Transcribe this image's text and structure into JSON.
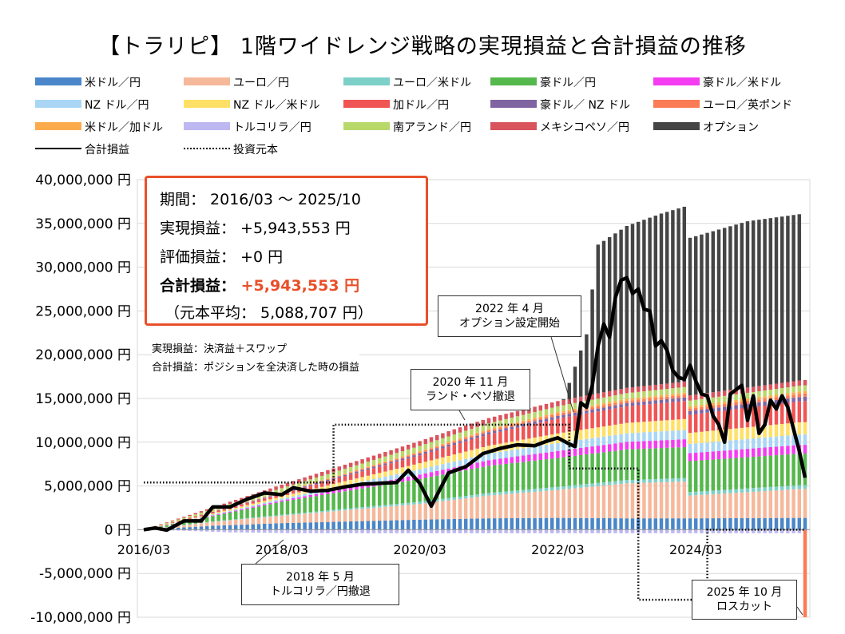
{
  "title": "【トラリピ】 1階ワイドレンジ戦略の実現損益と合計損益の推移",
  "legend": [
    {
      "label": "米ドル／円",
      "color": "#4a86c8",
      "kind": "bar"
    },
    {
      "label": "ユーロ／円",
      "color": "#f6b89b",
      "kind": "bar"
    },
    {
      "label": "ユーロ／米ドル",
      "color": "#7dd0c7",
      "kind": "bar"
    },
    {
      "label": "豪ドル／円",
      "color": "#55b84c",
      "kind": "bar"
    },
    {
      "label": "豪ドル／米ドル",
      "color": "#f43cf0",
      "kind": "bar"
    },
    {
      "label": "NZ ドル／円",
      "color": "#a9d6f5",
      "kind": "bar"
    },
    {
      "label": "NZ ドル／米ドル",
      "color": "#ffe066",
      "kind": "bar"
    },
    {
      "label": "加ドル／円",
      "color": "#f05454",
      "kind": "bar"
    },
    {
      "label": "豪ドル／ NZ ドル",
      "color": "#8064a2",
      "kind": "bar"
    },
    {
      "label": "ユーロ／英ポンド",
      "color": "#fb7b54",
      "kind": "bar"
    },
    {
      "label": "米ドル／加ドル",
      "color": "#fbab4c",
      "kind": "bar"
    },
    {
      "label": "トルコリラ／円",
      "color": "#bdb7f2",
      "kind": "bar"
    },
    {
      "label": "南アランド／円",
      "color": "#b9d86a",
      "kind": "bar"
    },
    {
      "label": "メキシコペソ／円",
      "color": "#d9545c",
      "kind": "bar"
    },
    {
      "label": "オプション",
      "color": "#454545",
      "kind": "bar"
    },
    {
      "label": "合計損益",
      "color": "#000000",
      "kind": "line"
    },
    {
      "label": "投資元本",
      "color": "#000000",
      "kind": "dotted"
    }
  ],
  "summary": {
    "period": "期間： 2016/03 ～ 2025/10",
    "realized": "実現損益： +5,943,553 円",
    "unrealized": "評価損益： +0 円",
    "total_label": "合計損益：",
    "total_value": "+5,943,553 円",
    "principal": "（元本平均： 5,088,707 円）"
  },
  "notes": {
    "line1": "実現損益：決済益＋スワップ",
    "line2": "合計損益：ポジションを全決済した時の損益"
  },
  "annotations": [
    {
      "text1": "2018 年 5 月",
      "text2": "トルコリラ／円撤退"
    },
    {
      "text1": "2020 年 11 月",
      "text2": "ランド・ペソ撤退"
    },
    {
      "text1": "2022 年 4 月",
      "text2": "オプション設定開始"
    },
    {
      "text1": "2025 年 10 月",
      "text2": "ロスカット"
    }
  ],
  "chart_data": {
    "type": "bar",
    "stacked": true,
    "x_start": "2016/03",
    "x_end": "2025/10",
    "x_tick_labels": [
      "2016/03",
      "2018/03",
      "2020/03",
      "2022/03",
      "2024/03"
    ],
    "y_tick_labels": [
      "40,000,000 円",
      "35,000,000 円",
      "30,000,000 円",
      "25,000,000 円",
      "20,000,000 円",
      "15,000,000 円",
      "10,000,000 円",
      "5,000,000 円",
      "0 円",
      "-5,000,000 円",
      "-10,000,000 円"
    ],
    "ylim": [
      -10000000,
      40000000
    ],
    "series_anchors_note": "値は年月ごとの概算（円）。アンカー間は線形補間。",
    "series": [
      {
        "name": "米ドル／円",
        "anchors": [
          [
            "2016/03",
            0
          ],
          [
            "2017/03",
            450000
          ],
          [
            "2018/03",
            750000
          ],
          [
            "2020/03",
            1150000
          ],
          [
            "2021/03",
            1300000
          ],
          [
            "2022/03",
            1350000
          ],
          [
            "2023/03",
            1300000
          ],
          [
            "2024/03",
            1300000
          ],
          [
            "2025/09",
            1350000
          ],
          [
            "2025/10",
            1350000
          ]
        ]
      },
      {
        "name": "ユーロ／円",
        "anchors": [
          [
            "2016/03",
            0
          ],
          [
            "2017/03",
            450000
          ],
          [
            "2018/03",
            850000
          ],
          [
            "2020/03",
            1800000
          ],
          [
            "2021/03",
            2600000
          ],
          [
            "2022/03",
            3200000
          ],
          [
            "2023/03",
            4000000
          ],
          [
            "2024/01",
            4200000
          ],
          [
            "2024/02",
            2600000
          ],
          [
            "2025/09",
            3300000
          ],
          [
            "2025/10",
            3300000
          ]
        ]
      },
      {
        "name": "ユーロ／米ドル",
        "anchors": [
          [
            "2016/03",
            0
          ],
          [
            "2018/03",
            100000
          ],
          [
            "2020/03",
            250000
          ],
          [
            "2022/03",
            350000
          ],
          [
            "2025/10",
            450000
          ]
        ]
      },
      {
        "name": "豪ドル／円",
        "anchors": [
          [
            "2016/03",
            0
          ],
          [
            "2017/03",
            600000
          ],
          [
            "2018/03",
            1500000
          ],
          [
            "2020/03",
            2600000
          ],
          [
            "2021/03",
            3100000
          ],
          [
            "2022/03",
            3300000
          ],
          [
            "2023/03",
            3500000
          ],
          [
            "2025/10",
            3600000
          ]
        ]
      },
      {
        "name": "豪ドル／米ドル",
        "anchors": [
          [
            "2016/03",
            0
          ],
          [
            "2018/03",
            150000
          ],
          [
            "2020/03",
            500000
          ],
          [
            "2022/03",
            800000
          ],
          [
            "2025/10",
            1000000
          ]
        ]
      },
      {
        "name": "NZ ドル／円",
        "anchors": [
          [
            "2016/03",
            0
          ],
          [
            "2018/03",
            200000
          ],
          [
            "2020/03",
            600000
          ],
          [
            "2022/03",
            900000
          ],
          [
            "2025/10",
            1200000
          ]
        ]
      },
      {
        "name": "NZ ドル／米ドル",
        "anchors": [
          [
            "2016/03",
            0
          ],
          [
            "2018/03",
            250000
          ],
          [
            "2020/03",
            700000
          ],
          [
            "2022/03",
            1100000
          ],
          [
            "2025/10",
            1400000
          ]
        ]
      },
      {
        "name": "加ドル／円",
        "anchors": [
          [
            "2016/03",
            0
          ],
          [
            "2018/03",
            300000
          ],
          [
            "2020/03",
            900000
          ],
          [
            "2022/03",
            1700000
          ],
          [
            "2025/10",
            2400000
          ]
        ]
      },
      {
        "name": "豪ドル／ NZ ドル",
        "anchors": [
          [
            "2016/03",
            0
          ],
          [
            "2018/03",
            100000
          ],
          [
            "2020/03",
            200000
          ],
          [
            "2022/03",
            300000
          ],
          [
            "2025/10",
            500000
          ]
        ]
      },
      {
        "name": "ユーロ／英ポンド",
        "anchors": [
          [
            "2016/03",
            0
          ],
          [
            "2018/03",
            50000
          ],
          [
            "2020/03",
            150000
          ],
          [
            "2022/03",
            250000
          ],
          [
            "2025/10",
            350000
          ]
        ]
      },
      {
        "name": "米ドル／加ドル",
        "anchors": [
          [
            "2016/03",
            0
          ],
          [
            "2018/03",
            50000
          ],
          [
            "2020/03",
            120000
          ],
          [
            "2022/03",
            200000
          ],
          [
            "2025/10",
            300000
          ]
        ]
      },
      {
        "name": "トルコリラ／円",
        "anchors": [
          [
            "2016/03",
            0
          ],
          [
            "2016/09",
            -100000
          ],
          [
            "2017/06",
            -300000
          ],
          [
            "2018/05",
            -400000
          ],
          [
            "2025/10",
            -400000
          ]
        ]
      },
      {
        "name": "南アランド／円",
        "anchors": [
          [
            "2016/03",
            0
          ],
          [
            "2017/03",
            250000
          ],
          [
            "2018/03",
            450000
          ],
          [
            "2020/10",
            650000
          ],
          [
            "2025/10",
            650000
          ]
        ]
      },
      {
        "name": "メキシコペソ／円",
        "anchors": [
          [
            "2016/03",
            0
          ],
          [
            "2017/03",
            200000
          ],
          [
            "2018/03",
            400000
          ],
          [
            "2020/10",
            600000
          ],
          [
            "2025/10",
            600000
          ]
        ]
      },
      {
        "name": "オプション",
        "anchors": [
          [
            "2016/03",
            0
          ],
          [
            "2022/03",
            0
          ],
          [
            "2022/04",
            100000
          ],
          [
            "2022/08",
            7000000
          ],
          [
            "2022/10",
            17000000
          ],
          [
            "2023/03",
            18500000
          ],
          [
            "2023/09",
            19500000
          ],
          [
            "2024/01",
            20000000
          ],
          [
            "2024/02",
            18000000
          ],
          [
            "2024/12",
            19000000
          ],
          [
            "2025/09",
            19000000
          ],
          [
            "2025/10",
            5000000
          ]
        ]
      }
    ],
    "total_pl_anchors": [
      [
        "2016/03",
        0
      ],
      [
        "2016/05",
        200000
      ],
      [
        "2016/07",
        -50000
      ],
      [
        "2016/10",
        1000000
      ],
      [
        "2017/01",
        1000000
      ],
      [
        "2017/03",
        2600000
      ],
      [
        "2017/06",
        2600000
      ],
      [
        "2017/09",
        3500000
      ],
      [
        "2017/12",
        4200000
      ],
      [
        "2018/03",
        4000000
      ],
      [
        "2018/05",
        4800000
      ],
      [
        "2018/08",
        4400000
      ],
      [
        "2018/11",
        4500000
      ],
      [
        "2019/02",
        4900000
      ],
      [
        "2019/05",
        5200000
      ],
      [
        "2019/08",
        5300000
      ],
      [
        "2019/11",
        5400000
      ],
      [
        "2020/01",
        6800000
      ],
      [
        "2020/03",
        5300000
      ],
      [
        "2020/05",
        2700000
      ],
      [
        "2020/08",
        6500000
      ],
      [
        "2020/11",
        7200000
      ],
      [
        "2021/02",
        8700000
      ],
      [
        "2021/05",
        9300000
      ],
      [
        "2021/08",
        9700000
      ],
      [
        "2021/11",
        9600000
      ],
      [
        "2022/01",
        10100000
      ],
      [
        "2022/03",
        10500000
      ],
      [
        "2022/05",
        9800000
      ],
      [
        "2022/06",
        9500000
      ],
      [
        "2022/07",
        14500000
      ],
      [
        "2022/08",
        14000000
      ],
      [
        "2022/09",
        16500000
      ],
      [
        "2022/10",
        21000000
      ],
      [
        "2022/11",
        23500000
      ],
      [
        "2022/12",
        22000000
      ],
      [
        "2023/01",
        26500000
      ],
      [
        "2023/02",
        28500000
      ],
      [
        "2023/03",
        28800000
      ],
      [
        "2023/04",
        27000000
      ],
      [
        "2023/05",
        27500000
      ],
      [
        "2023/06",
        25200000
      ],
      [
        "2023/07",
        25000000
      ],
      [
        "2023/08",
        21000000
      ],
      [
        "2023/09",
        21600000
      ],
      [
        "2023/10",
        20500000
      ],
      [
        "2023/11",
        18200000
      ],
      [
        "2023/12",
        17400000
      ],
      [
        "2024/01",
        17200000
      ],
      [
        "2024/02",
        18800000
      ],
      [
        "2024/03",
        17000000
      ],
      [
        "2024/04",
        15500000
      ],
      [
        "2024/05",
        15300000
      ],
      [
        "2024/06",
        13000000
      ],
      [
        "2024/07",
        12000000
      ],
      [
        "2024/08",
        10000000
      ],
      [
        "2024/09",
        15500000
      ],
      [
        "2024/10",
        16000000
      ],
      [
        "2024/11",
        16500000
      ],
      [
        "2024/12",
        12500000
      ],
      [
        "2025/01",
        15300000
      ],
      [
        "2025/02",
        11000000
      ],
      [
        "2025/03",
        12000000
      ],
      [
        "2025/04",
        14800000
      ],
      [
        "2025/05",
        13800000
      ],
      [
        "2025/06",
        15300000
      ],
      [
        "2025/07",
        14000000
      ],
      [
        "2025/08",
        11500000
      ],
      [
        "2025/09",
        9000000
      ],
      [
        "2025/10",
        5943553
      ]
    ],
    "principal_anchors": [
      [
        "2016/03",
        5400000
      ],
      [
        "2018/12",
        5400000
      ],
      [
        "2018/12",
        12000000
      ],
      [
        "2022/05",
        12000000
      ],
      [
        "2022/05",
        7000000
      ],
      [
        "2023/05",
        7000000
      ],
      [
        "2023/05",
        -8000000
      ],
      [
        "2024/05",
        -8000000
      ],
      [
        "2024/05",
        0
      ],
      [
        "2025/10",
        0
      ]
    ]
  }
}
